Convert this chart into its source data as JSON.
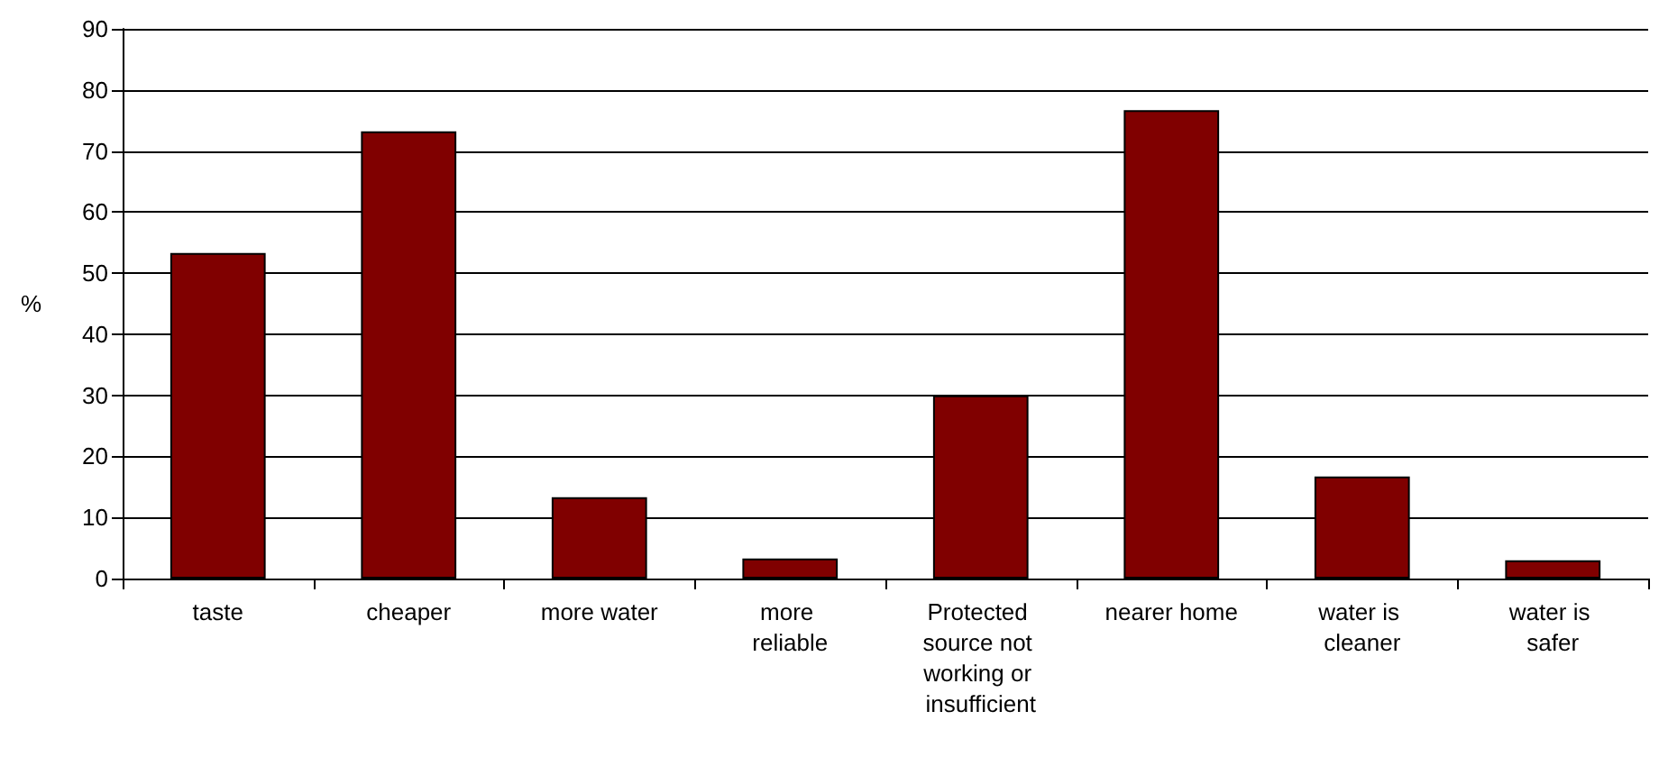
{
  "chart_data": {
    "type": "bar",
    "ylabel": "%",
    "categories": [
      "taste",
      "cheaper",
      "more water",
      "more reliable",
      "Protected source not working or insufficient",
      "nearer home",
      "water is cleaner",
      "water is safer"
    ],
    "values": [
      53.3,
      73.2,
      13.3,
      3.3,
      30,
      76.7,
      16.7,
      3
    ],
    "color": "#800000",
    "ylim": [
      0,
      90
    ],
    "yticks": [
      0,
      10,
      20,
      30,
      40,
      50,
      60,
      70,
      80,
      90
    ],
    "grid": "y"
  }
}
